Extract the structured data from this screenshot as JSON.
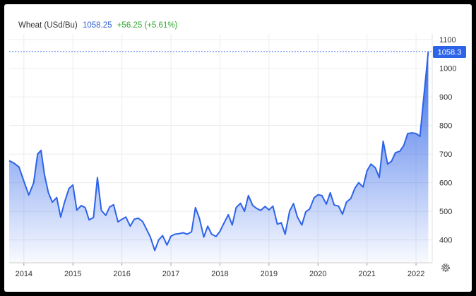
{
  "header": {
    "name": "Wheat (USd/Bu)",
    "price": "1058.25",
    "change": "+56.25 (+5.61%)"
  },
  "colors": {
    "line": "#2d63e8",
    "price_text": "#2d5fd6",
    "change_text": "#2fa72f",
    "last_label_bg": "#2d63e8"
  },
  "settings_icon": "gear-icon",
  "chart_data": {
    "type": "area",
    "title": "",
    "xlabel": "",
    "ylabel": "",
    "ylim": [
      320,
      1120
    ],
    "xlim": [
      2013.7,
      2022.33
    ],
    "yticks": [
      400,
      500,
      600,
      700,
      800,
      900,
      1000,
      1100
    ],
    "xticks": [
      2014,
      2015,
      2016,
      2017,
      2018,
      2019,
      2020,
      2021,
      2022
    ],
    "ytick_labels": [
      "400",
      "500",
      "600",
      "700",
      "800",
      "900",
      "1000",
      "1100"
    ],
    "xtick_labels": [
      "2014",
      "2015",
      "2016",
      "2017",
      "2018",
      "2019",
      "2020",
      "2021",
      "2022"
    ],
    "grid": true,
    "last_value_label": "1058.3",
    "last_value": 1058.25,
    "series": [
      {
        "x": [
          2013.7,
          2013.8,
          2013.9,
          2014.0,
          2014.1,
          2014.2,
          2014.28,
          2014.35,
          2014.42,
          2014.5,
          2014.58,
          2014.67,
          2014.75,
          2014.83,
          2014.92,
          2015.0,
          2015.08,
          2015.17,
          2015.25,
          2015.33,
          2015.42,
          2015.5,
          2015.58,
          2015.67,
          2015.75,
          2015.83,
          2015.92,
          2016.0,
          2016.08,
          2016.17,
          2016.25,
          2016.33,
          2016.42,
          2016.5,
          2016.58,
          2016.67,
          2016.75,
          2016.83,
          2016.92,
          2017.0,
          2017.08,
          2017.17,
          2017.25,
          2017.33,
          2017.42,
          2017.5,
          2017.58,
          2017.67,
          2017.75,
          2017.83,
          2017.92,
          2018.0,
          2018.08,
          2018.17,
          2018.25,
          2018.33,
          2018.42,
          2018.5,
          2018.58,
          2018.67,
          2018.75,
          2018.83,
          2018.92,
          2019.0,
          2019.08,
          2019.17,
          2019.25,
          2019.33,
          2019.42,
          2019.5,
          2019.58,
          2019.67,
          2019.75,
          2019.83,
          2019.92,
          2020.0,
          2020.08,
          2020.17,
          2020.25,
          2020.33,
          2020.42,
          2020.5,
          2020.58,
          2020.67,
          2020.75,
          2020.83,
          2020.92,
          2021.0,
          2021.08,
          2021.17,
          2021.25,
          2021.33,
          2021.42,
          2021.5,
          2021.58,
          2021.67,
          2021.75,
          2021.83,
          2021.92,
          2022.0,
          2022.08,
          2022.17,
          2022.25
        ],
        "y": [
          677,
          668,
          655,
          605,
          557,
          600,
          700,
          713,
          628,
          565,
          532,
          548,
          480,
          532,
          580,
          592,
          504,
          520,
          513,
          470,
          478,
          618,
          503,
          486,
          515,
          523,
          463,
          472,
          480,
          448,
          472,
          476,
          465,
          438,
          410,
          363,
          400,
          415,
          382,
          413,
          420,
          422,
          425,
          420,
          428,
          513,
          476,
          410,
          448,
          420,
          412,
          430,
          458,
          488,
          452,
          513,
          528,
          500,
          555,
          520,
          510,
          503,
          517,
          505,
          518,
          455,
          460,
          420,
          500,
          527,
          480,
          452,
          498,
          508,
          547,
          558,
          555,
          525,
          565,
          522,
          518,
          490,
          532,
          545,
          580,
          600,
          585,
          642,
          665,
          652,
          618,
          745,
          665,
          675,
          705,
          710,
          730,
          772,
          774,
          772,
          762,
          920,
          1058
        ]
      }
    ]
  }
}
